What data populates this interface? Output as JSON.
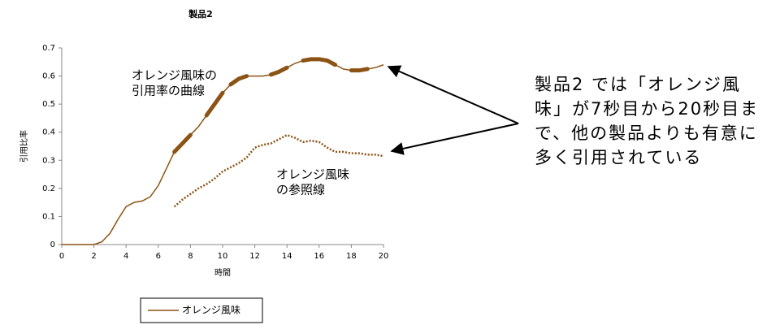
{
  "chart_data": {
    "type": "line",
    "title": "製品2",
    "xlabel": "時間",
    "ylabel": "引用比率",
    "x": [
      0,
      0.5,
      1,
      1.5,
      2,
      2.5,
      3,
      3.5,
      4,
      4.5,
      5,
      5.5,
      6,
      6.5,
      7,
      7.5,
      8,
      8.5,
      9,
      9.5,
      10,
      10.5,
      11,
      11.5,
      12,
      12.5,
      13,
      13.5,
      14,
      14.5,
      15,
      15.5,
      16,
      16.5,
      17,
      17.5,
      18,
      18.5,
      19,
      19.5,
      20
    ],
    "series": [
      {
        "name": "オレンジ風味",
        "color": "#8b5314",
        "style": "solid",
        "values": [
          0,
          0,
          0,
          0,
          0,
          0.01,
          0.04,
          0.09,
          0.135,
          0.15,
          0.155,
          0.17,
          0.21,
          0.27,
          0.33,
          0.36,
          0.39,
          0.42,
          0.46,
          0.5,
          0.54,
          0.57,
          0.59,
          0.6,
          0.6,
          0.6,
          0.605,
          0.615,
          0.63,
          0.645,
          0.655,
          0.66,
          0.66,
          0.655,
          0.64,
          0.625,
          0.62,
          0.62,
          0.625,
          0.63,
          0.64
        ],
        "emphasis_x_ranges": [
          [
            7,
            8
          ],
          [
            9,
            10
          ],
          [
            10.5,
            11.5
          ],
          [
            13,
            14
          ],
          [
            15,
            17
          ],
          [
            18,
            19
          ]
        ]
      },
      {
        "color": "#8b5314",
        "style": "dotted",
        "values": [
          null,
          null,
          null,
          null,
          null,
          null,
          null,
          null,
          null,
          null,
          null,
          null,
          null,
          null,
          0.135,
          0.16,
          0.18,
          0.2,
          0.215,
          0.235,
          0.26,
          0.275,
          0.29,
          0.31,
          0.345,
          0.355,
          0.36,
          0.375,
          0.39,
          0.38,
          0.365,
          0.37,
          0.365,
          0.345,
          0.33,
          0.33,
          0.325,
          0.325,
          0.32,
          0.32,
          0.315
        ]
      }
    ],
    "xlim": [
      0,
      20
    ],
    "xticks": [
      0,
      2,
      4,
      6,
      8,
      10,
      12,
      14,
      16,
      18,
      20
    ],
    "ylim": [
      0,
      0.7
    ],
    "yticks": [
      0,
      0.1,
      0.2,
      0.3,
      0.4,
      0.5,
      0.6,
      0.7
    ],
    "legend": "bottom",
    "annotations": [
      {
        "lines": [
          "オレンジ風味の",
          "引用率の曲線"
        ]
      },
      {
        "lines": [
          "オレンジ風味",
          "の参照線"
        ]
      },
      {
        "lines": [
          "製品2 では「オレンジ風",
          "味」が7秒目から20秒目ま",
          "で、他の製品よりも有意に",
          "多く引用されている"
        ]
      }
    ]
  }
}
